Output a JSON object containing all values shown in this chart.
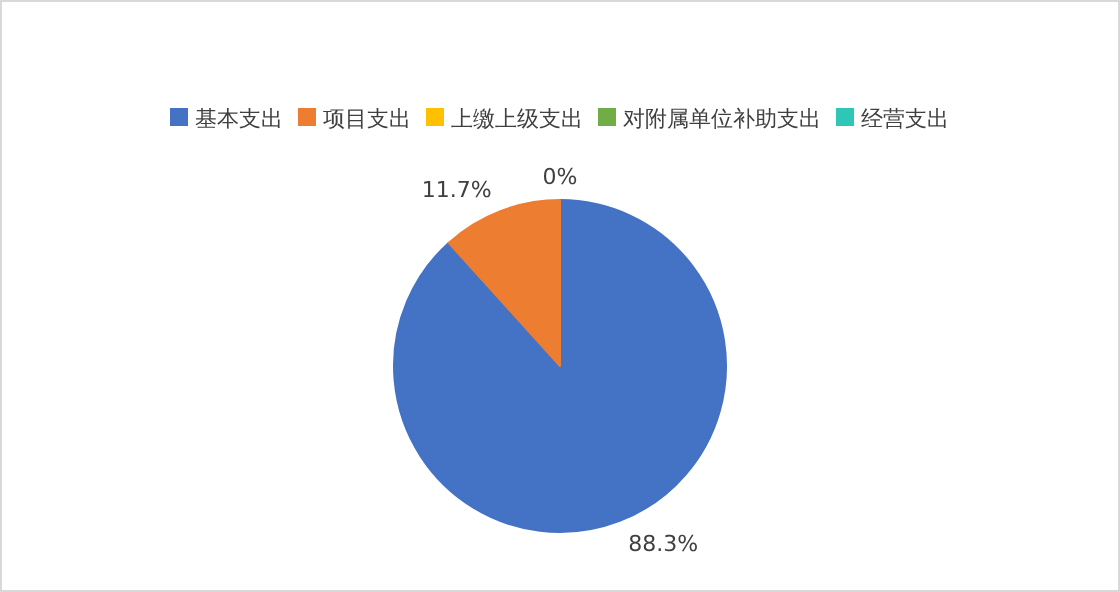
{
  "chart_data": {
    "type": "pie",
    "categories": [
      "基本支出",
      "项目支出",
      "上缴上级支出",
      "对附属单位补助支出",
      "经营支出"
    ],
    "values": [
      88.3,
      11.7,
      0,
      0,
      0
    ],
    "colors": [
      "#4472c4",
      "#ed7d31",
      "#ffc000",
      "#70ad47",
      "#2ec7b7"
    ],
    "value_labels": [
      "88.3%",
      "11.7%",
      "0%",
      null,
      null
    ],
    "legend": "top"
  }
}
